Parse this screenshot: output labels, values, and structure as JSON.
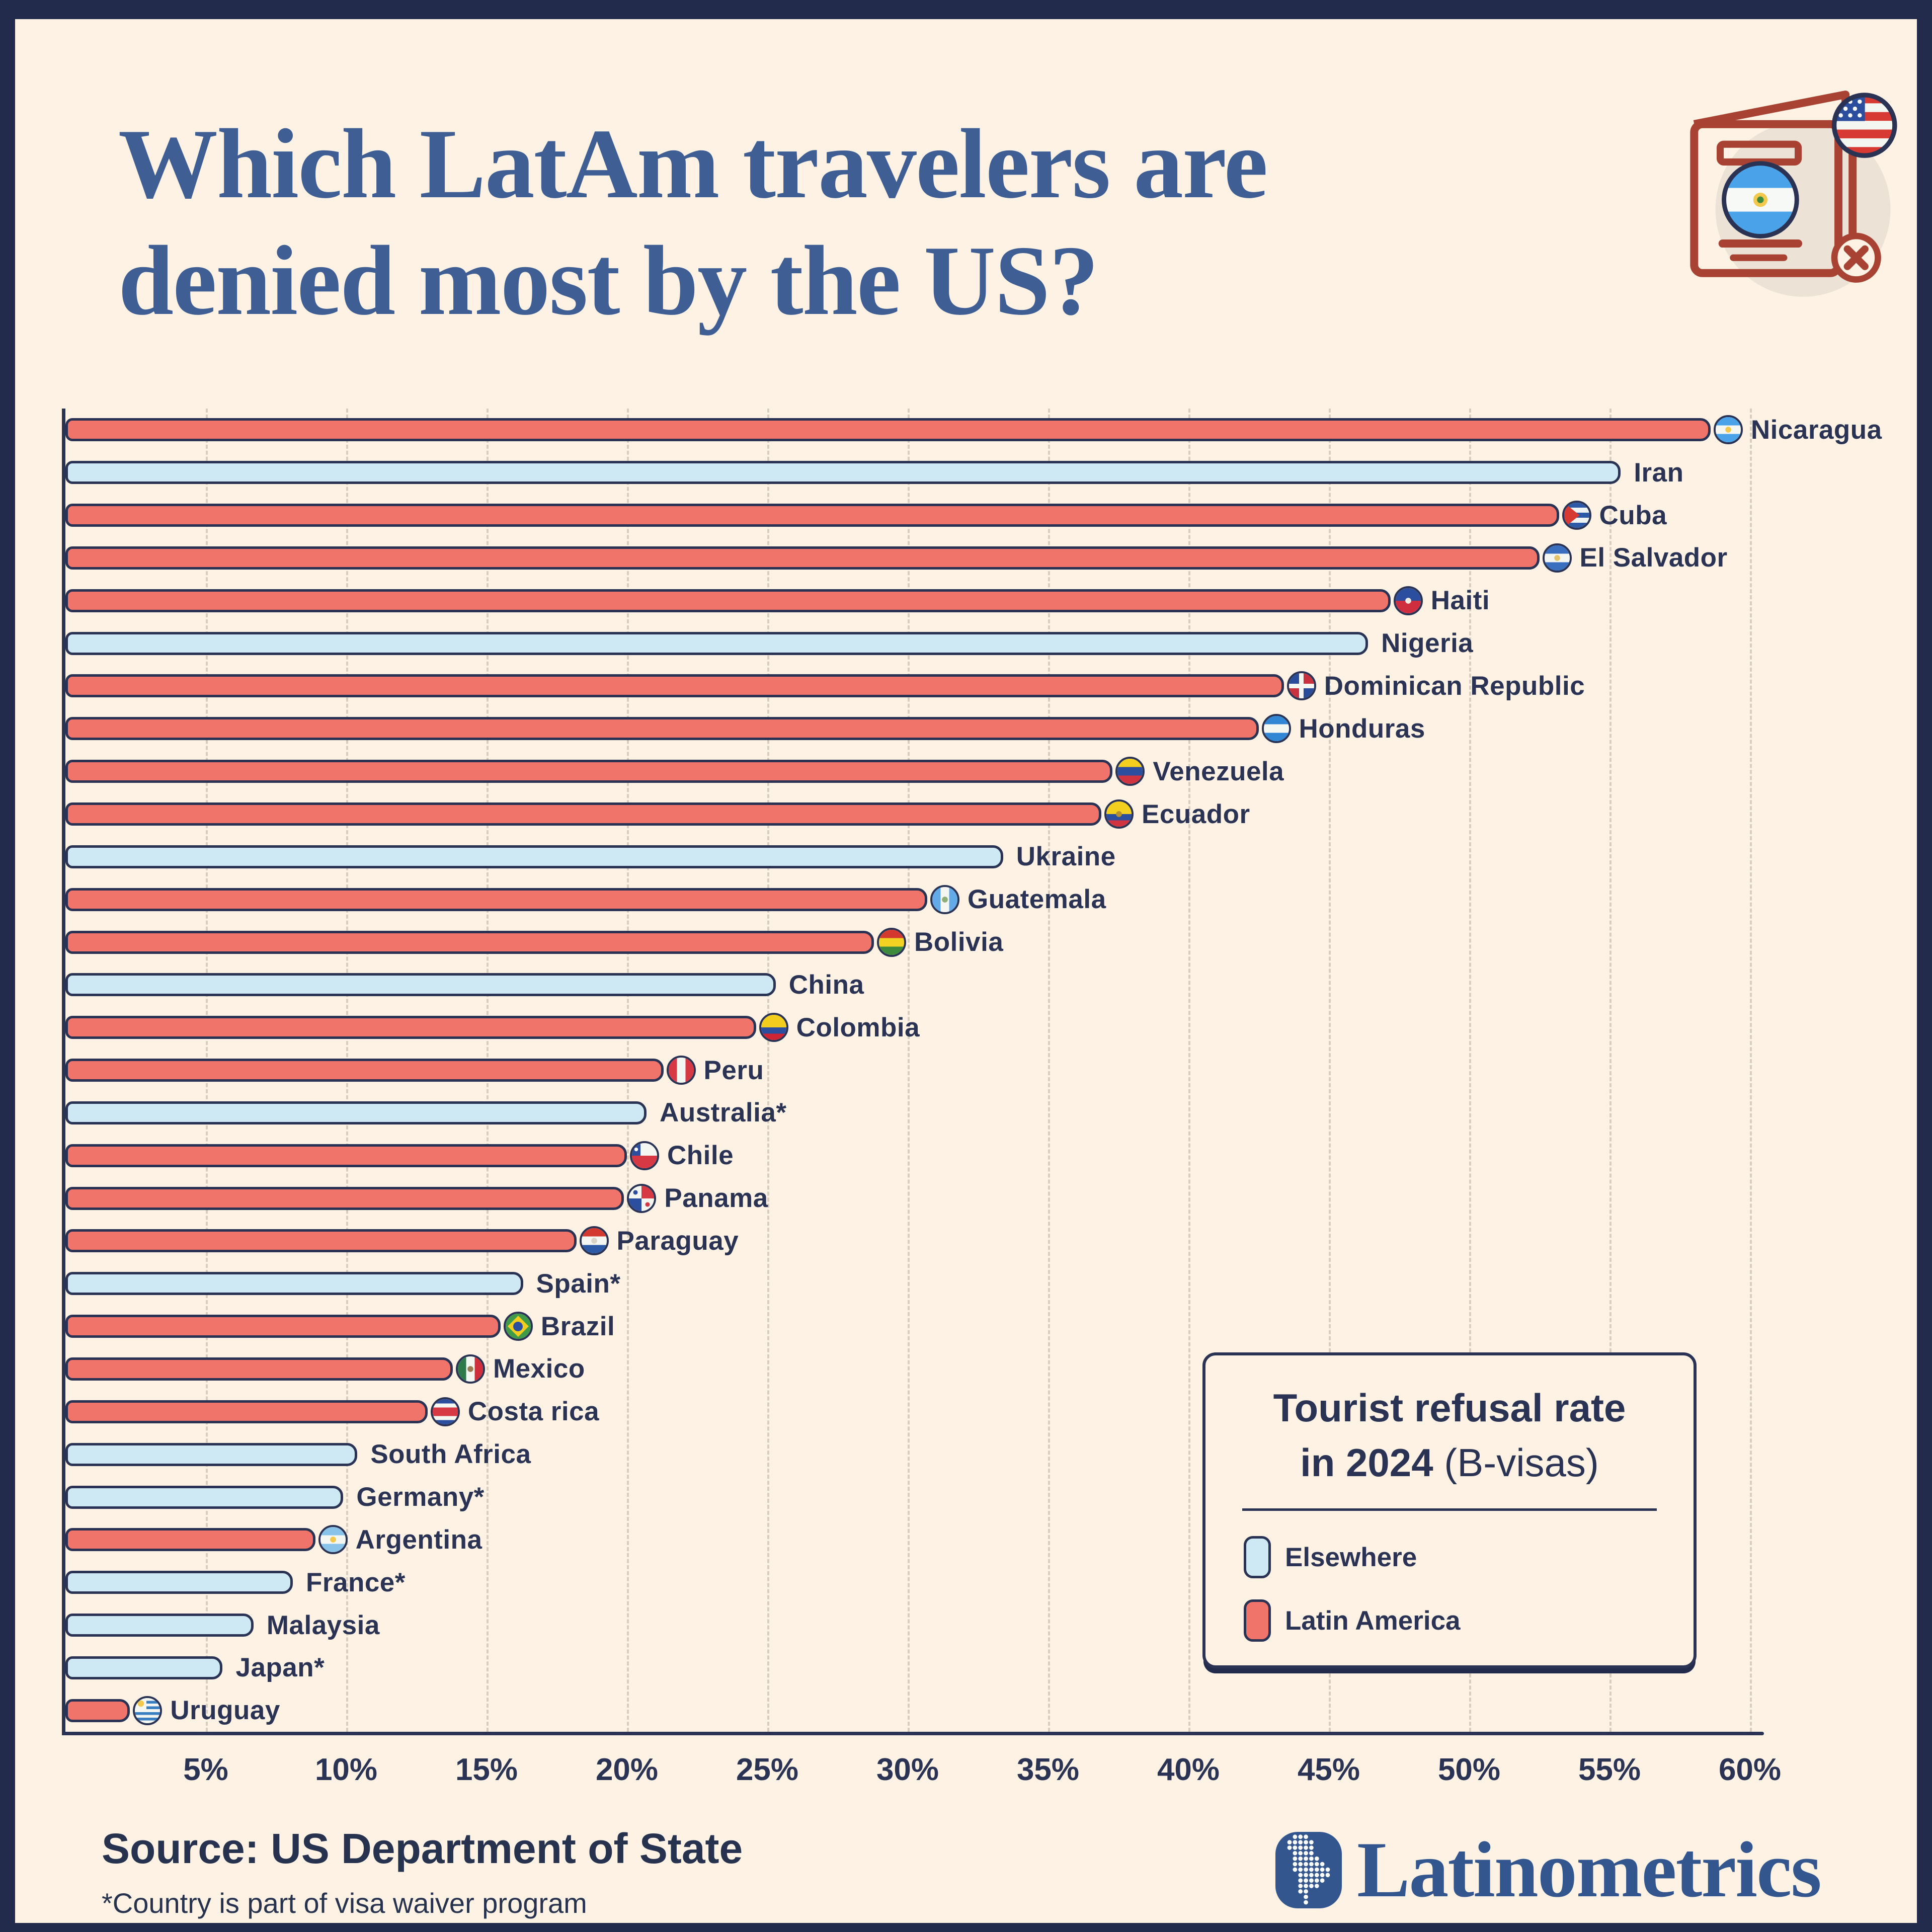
{
  "colors": {
    "canvas_frame": "#222b4c",
    "background": "#fdf2e3",
    "navy_ink": "#2a3353",
    "title_blue": "#3f5e94",
    "latam_salmon": "#f0746a",
    "elsewhere_blue": "#cfe9f4",
    "gridline": "#d8cec0",
    "passport_red": "#a84334",
    "logo_navy": "#33568e"
  },
  "header": {
    "title_line1": "Which LatAm travelers are",
    "title_line2": "denied most by the US?"
  },
  "icons": {
    "passport-denied-icon": "rejected passport booklet with Nicaragua flag, US flag and denied cross"
  },
  "chart_data": {
    "type": "bar",
    "orientation": "horizontal",
    "title": "Tourist refusal rate in 2024 (B-visas)",
    "unit": "%",
    "xlim": [
      0,
      60
    ],
    "x_ticks": [
      "5%",
      "10%",
      "15%",
      "20%",
      "25%",
      "30%",
      "35%",
      "40%",
      "45%",
      "50%",
      "55%",
      "60%"
    ],
    "grid": "dashed-vertical",
    "legend_position": "bottom-right",
    "bars": [
      {
        "label": "Nicaragua",
        "value": 58.6,
        "group": "latam",
        "flag": {
          "name": "nicaragua-flag-icon",
          "t": "h",
          "c": [
            "#4aa3e8",
            "#f4f6f2",
            "#4aa3e8"
          ],
          "badge": "#f2c94c"
        }
      },
      {
        "label": "Iran",
        "value": 55.4,
        "group": "elsewhere"
      },
      {
        "label": "Cuba",
        "value": 53.2,
        "group": "latam",
        "flag": {
          "name": "cuba-flag-icon",
          "t": "cuba",
          "c": [
            "#2c5aa7",
            "#eef3f4",
            "#2c5aa7",
            "#eef3f4",
            "#2c5aa7"
          ],
          "tri": "#d63a32"
        }
      },
      {
        "label": "El Salvador",
        "value": 52.5,
        "group": "latam",
        "flag": {
          "name": "el-salvador-flag-icon",
          "t": "h",
          "c": [
            "#3a6fc0",
            "#f4f6f2",
            "#3a6fc0"
          ],
          "badge": "#e3c46a"
        }
      },
      {
        "label": "Haiti",
        "value": 47.2,
        "group": "latam",
        "flag": {
          "name": "haiti-flag-icon",
          "t": "h",
          "c": [
            "#2c4e9e",
            "#cf2e3e"
          ],
          "badge": "#f1ece2"
        }
      },
      {
        "label": "Nigeria",
        "value": 46.4,
        "group": "elsewhere"
      },
      {
        "label": "Dominican Republic",
        "value": 43.4,
        "group": "latam",
        "flag": {
          "name": "dominican-republic-flag-icon",
          "t": "dr",
          "c": [
            "#2a4d9b",
            "#c8313e"
          ],
          "cross": "#f4f6f2"
        }
      },
      {
        "label": "Honduras",
        "value": 42.5,
        "group": "latam",
        "flag": {
          "name": "honduras-flag-icon",
          "t": "h",
          "c": [
            "#3186d6",
            "#f4f6f2",
            "#3186d6"
          ]
        }
      },
      {
        "label": "Venezuela",
        "value": 37.3,
        "group": "latam",
        "flag": {
          "name": "venezuela-flag-icon",
          "t": "h",
          "c": [
            "#f3cf20",
            "#2c4e9e",
            "#cf3440"
          ]
        }
      },
      {
        "label": "Ecuador",
        "value": 36.9,
        "group": "latam",
        "flag": {
          "name": "ecuador-flag-icon",
          "t": "h",
          "c": [
            "#f3cf20",
            "#f3cf20",
            "#2c4e9e",
            "#cf3440"
          ],
          "badge": "#b8912f"
        }
      },
      {
        "label": "Ukraine",
        "value": 33.4,
        "group": "elsewhere"
      },
      {
        "label": "Guatemala",
        "value": 30.7,
        "group": "latam",
        "flag": {
          "name": "guatemala-flag-icon",
          "t": "v",
          "c": [
            "#62aae8",
            "#f4f6f2",
            "#62aae8"
          ],
          "badge": "#8fae77"
        }
      },
      {
        "label": "Bolivia",
        "value": 28.8,
        "group": "latam",
        "flag": {
          "name": "bolivia-flag-icon",
          "t": "h",
          "c": [
            "#d4392f",
            "#f2d324",
            "#3e8a3c"
          ]
        }
      },
      {
        "label": "China",
        "value": 25.3,
        "group": "elsewhere"
      },
      {
        "label": "Colombia",
        "value": 24.6,
        "group": "latam",
        "flag": {
          "name": "colombia-flag-icon",
          "t": "h",
          "c": [
            "#f2cd1d",
            "#f2cd1d",
            "#2c4e9e",
            "#cf2433"
          ]
        }
      },
      {
        "label": "Peru",
        "value": 21.3,
        "group": "latam",
        "flag": {
          "name": "peru-flag-icon",
          "t": "v",
          "c": [
            "#d63844",
            "#f4f6f2",
            "#d63844"
          ]
        }
      },
      {
        "label": "Australia*",
        "value": 20.7,
        "group": "elsewhere"
      },
      {
        "label": "Chile",
        "value": 20.0,
        "group": "latam",
        "flag": {
          "name": "chile-flag-icon",
          "t": "chile",
          "c": [
            "#f4f6f2",
            "#d63844",
            "#2c4e9e"
          ]
        }
      },
      {
        "label": "Panama",
        "value": 19.9,
        "group": "latam",
        "flag": {
          "name": "panama-flag-icon",
          "t": "panama",
          "c": [
            "#f4f6f2",
            "#d63844",
            "#2c4e9e"
          ]
        }
      },
      {
        "label": "Paraguay",
        "value": 18.2,
        "group": "latam",
        "flag": {
          "name": "paraguay-flag-icon",
          "t": "h",
          "c": [
            "#d4392f",
            "#f4f6f2",
            "#2c5aa7"
          ],
          "badge": "#d8d3c4"
        }
      },
      {
        "label": "Spain*",
        "value": 16.3,
        "group": "elsewhere"
      },
      {
        "label": "Brazil",
        "value": 15.5,
        "group": "latam",
        "flag": {
          "name": "brazil-flag-icon",
          "t": "brazil",
          "c": [
            "#3f9b4a",
            "#f2cd1d",
            "#2c4e9e"
          ]
        }
      },
      {
        "label": "Mexico",
        "value": 13.8,
        "group": "latam",
        "flag": {
          "name": "mexico-flag-icon",
          "t": "v",
          "c": [
            "#2e7a4b",
            "#f4f6f2",
            "#cf2e3b"
          ],
          "badge": "#9c7a52"
        }
      },
      {
        "label": "Costa rica",
        "value": 12.9,
        "group": "latam",
        "flag": {
          "name": "costa-rica-flag-icon",
          "t": "h",
          "c": [
            "#2c4e9e",
            "#f4f6f2",
            "#d63844",
            "#d63844",
            "#f4f6f2",
            "#2c4e9e"
          ]
        }
      },
      {
        "label": "South Africa",
        "value": 10.4,
        "group": "elsewhere"
      },
      {
        "label": "Germany*",
        "value": 9.9,
        "group": "elsewhere"
      },
      {
        "label": "Argentina",
        "value": 8.9,
        "group": "latam",
        "flag": {
          "name": "argentina-flag-icon",
          "t": "h",
          "c": [
            "#8ac3ea",
            "#f4f6f2",
            "#8ac3ea"
          ],
          "badge": "#f2c94c"
        }
      },
      {
        "label": "France*",
        "value": 8.1,
        "group": "elsewhere"
      },
      {
        "label": "Malaysia",
        "value": 6.7,
        "group": "elsewhere"
      },
      {
        "label": "Japan*",
        "value": 5.6,
        "group": "elsewhere"
      },
      {
        "label": "Uruguay",
        "value": 2.3,
        "group": "latam",
        "flag": {
          "name": "uruguay-flag-icon",
          "t": "uruguay",
          "c": [
            "#f4f6f2",
            "#3a7fc1",
            "#f4f6f2",
            "#3a7fc1",
            "#f4f6f2",
            "#3a7fc1",
            "#f4f6f2",
            "#3a7fc1",
            "#f4f6f2"
          ],
          "sun": "#f2c94c"
        }
      }
    ]
  },
  "legend": {
    "title_line1": "Tourist refusal rate",
    "title_line2_bold": "in 2024",
    "title_line2_regular": "(B-visas)",
    "entries": [
      {
        "key": "elsewhere",
        "label": "Elsewhere",
        "color": "#cfe9f4"
      },
      {
        "key": "latam",
        "label": "Latin America",
        "color": "#f0746a"
      }
    ]
  },
  "footer": {
    "source": "Source: US Department of State",
    "footnote": "*Country is part of visa waiver program",
    "brand": "Latinometrics"
  }
}
